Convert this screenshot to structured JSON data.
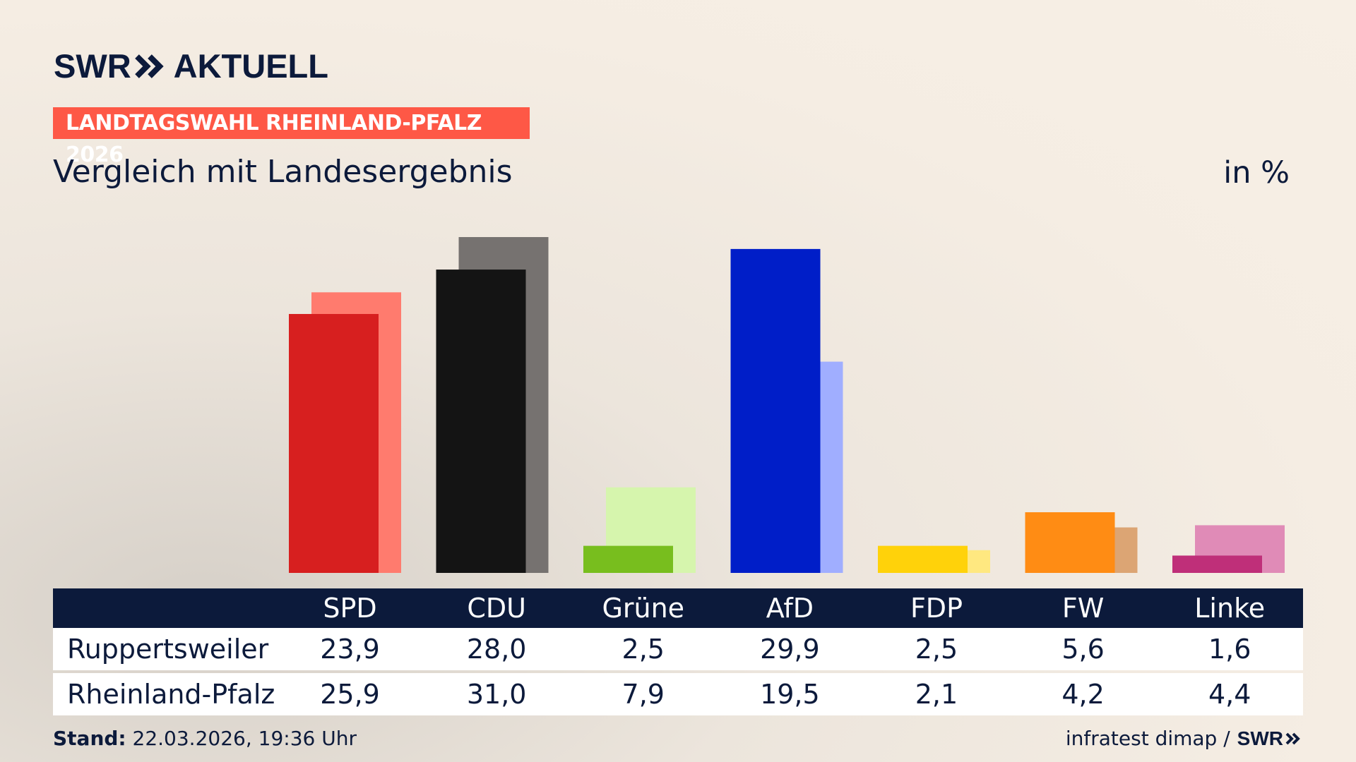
{
  "brand": {
    "swr": "SWR",
    "aktuell": "AKTUELL",
    "color": "#0c1a3b"
  },
  "badge": {
    "text": "LANDTAGSWAHL RHEINLAND-PFALZ 2026",
    "color": "#fe5846"
  },
  "subtitle": "Vergleich mit Landesergebnis",
  "unit": "in %",
  "chart_data": {
    "type": "bar",
    "categories": [
      "SPD",
      "CDU",
      "Grüne",
      "AfD",
      "FDP",
      "FW",
      "Linke"
    ],
    "series": [
      {
        "name": "Ruppertsweiler",
        "values": [
          23.9,
          28.0,
          2.5,
          29.9,
          2.5,
          5.6,
          1.6
        ]
      },
      {
        "name": "Rheinland-Pfalz",
        "values": [
          25.9,
          31.0,
          7.9,
          19.5,
          2.1,
          4.2,
          4.4
        ]
      }
    ],
    "colors_primary": [
      "#d71f1f",
      "#141414",
      "#78be1e",
      "#001ec8",
      "#ffd20a",
      "#ff8c14",
      "#bf2f79"
    ],
    "colors_secondary": [
      "#ff7b6e",
      "#767270",
      "#d6f5ad",
      "#a0aeff",
      "#ffe880",
      "#dca574",
      "#e08bb7"
    ],
    "ylim": [
      0,
      31
    ]
  },
  "table": {
    "rows": [
      {
        "label": "Ruppertsweiler",
        "values": [
          "23,9",
          "28,0",
          "2,5",
          "29,9",
          "2,5",
          "5,6",
          "1,6"
        ]
      },
      {
        "label": "Rheinland-Pfalz",
        "values": [
          "25,9",
          "31,0",
          "7,9",
          "19,5",
          "2,1",
          "4,2",
          "4,4"
        ]
      }
    ]
  },
  "footer": {
    "stand_label": "Stand:",
    "stand_value": " 22.03.2026, 19:36 Uhr",
    "source": "infratest dimap /",
    "swr": "SWR"
  }
}
